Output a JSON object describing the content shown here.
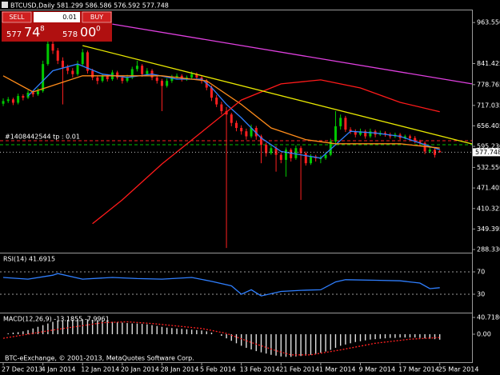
{
  "header": "BTCUSD,Daily  581.299 586.586 576.592 577.748",
  "trade_panel": {
    "sell": "SELL",
    "lot": "0.01",
    "buy": "BUY",
    "bid_main": "577",
    "bid_big": "74",
    "bid_small": "8",
    "ask_main": "578",
    "ask_big": "00",
    "ask_small": "0"
  },
  "footer": "BTC-eExchange, © 2001-2013, MetaQuotes Software Corp.",
  "chart_data": [
    {
      "type": "candlestick",
      "up_color": "#00c800",
      "down_color": "#ff2020",
      "xlim": [
        -0.65,
        94.5
      ],
      "ylim": [
        279,
        1002
      ],
      "xticks": [
        {
          "value": 0,
          "label": "27 Dec 2013"
        },
        {
          "value": 8,
          "label": "4 Jan 2014"
        },
        {
          "value": 16,
          "label": "12 Jan 2014"
        },
        {
          "value": 24,
          "label": "20 Jan 2014"
        },
        {
          "value": 32,
          "label": "28 Jan 2014"
        },
        {
          "value": 40,
          "label": "5 Feb 2014"
        },
        {
          "value": 48,
          "label": "13 Feb 2014"
        },
        {
          "value": 56,
          "label": "21 Feb 2014"
        },
        {
          "value": 64,
          "label": "1 Mar 2014"
        },
        {
          "value": 72,
          "label": "9 Mar 2014"
        },
        {
          "value": 80,
          "label": "17 Mar 2014"
        },
        {
          "value": 88,
          "label": "25 Mar 2014"
        }
      ],
      "yticks": [
        {
          "value": 963.55,
          "label": "963.550"
        },
        841.425,
        778.765,
        717.035,
        656.405,
        {
          "value": 595.23,
          "label": "595.230"
        },
        {
          "value": 532.55,
          "label": "532.550"
        },
        471.405,
        410.325,
        349.395,
        {
          "value": 288.33,
          "label": "288.330"
        }
      ],
      "current_price": 577.748,
      "order_label": "#1408442544 tp : 0.01",
      "hlines": [
        {
          "value": 612,
          "color": "#ff2020"
        },
        {
          "value": 600,
          "color": "#00c000"
        }
      ],
      "ohlc": [
        [
          722,
          738,
          715,
          730
        ],
        [
          730,
          742,
          724,
          735
        ],
        [
          735,
          740,
          718,
          725
        ],
        [
          725,
          752,
          720,
          745
        ],
        [
          745,
          750,
          732,
          740
        ],
        [
          740,
          762,
          736,
          755
        ],
        [
          755,
          760,
          742,
          750
        ],
        [
          750,
          768,
          745,
          760
        ],
        [
          760,
          850,
          755,
          840
        ],
        [
          840,
          930,
          835,
          900
        ],
        [
          900,
          940,
          870,
          880
        ],
        [
          880,
          888,
          840,
          850
        ],
        [
          850,
          860,
          720,
          830
        ],
        [
          830,
          838,
          810,
          820
        ],
        [
          820,
          828,
          800,
          810
        ],
        [
          810,
          850,
          805,
          840
        ],
        [
          840,
          885,
          835,
          875
        ],
        [
          875,
          880,
          812,
          820
        ],
        [
          820,
          826,
          792,
          800
        ],
        [
          800,
          806,
          780,
          790
        ],
        [
          790,
          812,
          785,
          805
        ],
        [
          805,
          810,
          788,
          795
        ],
        [
          795,
          822,
          790,
          815
        ],
        [
          815,
          820,
          794,
          800
        ],
        [
          800,
          806,
          782,
          790
        ],
        [
          790,
          808,
          785,
          800
        ],
        [
          800,
          832,
          795,
          825
        ],
        [
          825,
          850,
          818,
          835
        ],
        [
          835,
          840,
          802,
          810
        ],
        [
          810,
          828,
          805,
          820
        ],
        [
          820,
          825,
          792,
          800
        ],
        [
          800,
          806,
          782,
          790
        ],
        [
          790,
          796,
          700,
          775
        ],
        [
          775,
          798,
          770,
          790
        ],
        [
          790,
          808,
          784,
          800
        ],
        [
          800,
          812,
          795,
          805
        ],
        [
          805,
          810,
          788,
          795
        ],
        [
          795,
          806,
          790,
          800
        ],
        [
          800,
          818,
          795,
          810
        ],
        [
          810,
          815,
          793,
          800
        ],
        [
          800,
          806,
          782,
          790
        ],
        [
          790,
          795,
          762,
          770
        ],
        [
          770,
          776,
          730,
          740
        ],
        [
          740,
          748,
          712,
          720
        ],
        [
          720,
          728,
          690,
          700
        ],
        [
          700,
          712,
          293,
          690
        ],
        [
          690,
          695,
          655,
          665
        ],
        [
          665,
          672,
          640,
          650
        ],
        [
          650,
          658,
          630,
          640
        ],
        [
          640,
          648,
          615,
          625
        ],
        [
          625,
          660,
          620,
          650
        ],
        [
          650,
          656,
          615,
          625
        ],
        [
          625,
          630,
          545,
          600
        ],
        [
          600,
          606,
          565,
          575
        ],
        [
          575,
          598,
          570,
          590
        ],
        [
          590,
          596,
          520,
          570
        ],
        [
          570,
          576,
          545,
          555
        ],
        [
          555,
          592,
          505,
          585
        ],
        [
          585,
          590,
          550,
          560
        ],
        [
          560,
          598,
          555,
          590
        ],
        [
          590,
          596,
          436,
          575
        ],
        [
          575,
          580,
          538,
          545
        ],
        [
          545,
          572,
          540,
          565
        ],
        [
          565,
          570,
          550,
          560
        ],
        [
          560,
          568,
          545,
          560
        ],
        [
          560,
          578,
          555,
          570
        ],
        [
          570,
          618,
          566,
          610
        ],
        [
          610,
          700,
          605,
          655
        ],
        [
          655,
          690,
          645,
          680
        ],
        [
          680,
          686,
          638,
          645
        ],
        [
          645,
          652,
          632,
          640
        ],
        [
          640,
          646,
          622,
          630
        ],
        [
          630,
          648,
          626,
          640
        ],
        [
          640,
          645,
          618,
          625
        ],
        [
          625,
          648,
          620,
          640
        ],
        [
          640,
          645,
          622,
          630
        ],
        [
          630,
          642,
          626,
          635
        ],
        [
          635,
          640,
          624,
          630
        ],
        [
          630,
          636,
          618,
          625
        ],
        [
          625,
          636,
          620,
          630
        ],
        [
          630,
          635,
          614,
          620
        ],
        [
          620,
          630,
          616,
          625
        ],
        [
          625,
          630,
          614,
          620
        ],
        [
          620,
          626,
          604,
          610
        ],
        [
          610,
          615,
          598,
          605
        ],
        [
          605,
          610,
          572,
          580
        ],
        [
          580,
          592,
          575,
          585
        ],
        [
          585,
          590,
          562,
          570
        ],
        [
          581.299,
          586.586,
          576.592,
          577.748
        ]
      ],
      "lines": [
        {
          "color": "#2f7fff",
          "x": [
            5,
            10,
            15,
            20,
            25,
            30,
            35,
            40,
            42,
            45,
            48,
            52,
            56,
            60,
            64,
            67,
            70,
            75,
            80,
            85,
            88
          ],
          "values": [
            745,
            820,
            840,
            810,
            800,
            810,
            795,
            795,
            770,
            720,
            680,
            620,
            580,
            570,
            560,
            600,
            640,
            635,
            625,
            600,
            585
          ]
        },
        {
          "color": "#ff8c1a",
          "x": [
            0,
            6,
            16,
            32,
            41,
            48,
            54,
            61,
            67,
            80,
            88
          ],
          "values": [
            805,
            757,
            805,
            805,
            790,
            720,
            650,
            615,
            603,
            603,
            590
          ]
        },
        {
          "color": "#ff1a1a",
          "x": [
            18,
            24,
            32,
            40,
            48,
            56,
            64,
            72,
            80,
            88
          ],
          "values": [
            365,
            436,
            543,
            638,
            733,
            781,
            793,
            769,
            726,
            698
          ]
        },
        {
          "color": "#e8e800",
          "x": [
            16,
            94.5
          ],
          "values": [
            895,
            602.5
          ]
        },
        {
          "color": "#e040e0",
          "x": [
            22,
            94.5
          ],
          "values": [
            959,
            781
          ]
        }
      ]
    },
    {
      "type": "line",
      "title": "RSI(14) 41.6915",
      "ylim": [
        0,
        100
      ],
      "yticks": [
        70,
        30
      ],
      "levels": true,
      "series": [
        {
          "color": "#2f7fff",
          "x": [
            0,
            5,
            10,
            11,
            16,
            22,
            27,
            32,
            38,
            42,
            46,
            48,
            50,
            52,
            56,
            60,
            64,
            67,
            69,
            75,
            80,
            84,
            86,
            88
          ],
          "values": [
            60,
            57,
            64,
            67,
            57,
            60,
            58,
            57,
            60,
            53,
            45,
            30,
            38,
            27,
            35,
            37,
            38,
            52,
            56,
            55,
            54,
            50,
            40,
            41.6915
          ]
        }
      ]
    },
    {
      "type": "macd",
      "title": "MACD(12,26,9) -13.1855 -7.9961",
      "ylim": [
        -66,
        44.6
      ],
      "yticks": [
        40.7186,
        {
          "value": 0,
          "label": "0.00"
        }
      ],
      "histogram": {
        "color": "#e0e0e0",
        "values": [
          0,
          2,
          4,
          5,
          7,
          10,
          14,
          18,
          22,
          26,
          30,
          32,
          34,
          35,
          35,
          36,
          36,
          36,
          35,
          34,
          33,
          32,
          30,
          29,
          28,
          27,
          26,
          26,
          25,
          24,
          22,
          20,
          18,
          16,
          15,
          14,
          13,
          12,
          11,
          10,
          9,
          7,
          4,
          0,
          -4,
          -10,
          -16,
          -22,
          -28,
          -33,
          -37,
          -41,
          -44,
          -47,
          -50,
          -52,
          -54,
          -55,
          -55,
          -54,
          -53,
          -52,
          -50,
          -48,
          -45,
          -42,
          -38,
          -33,
          -28,
          -25,
          -22,
          -19,
          -17,
          -15,
          -13,
          -12,
          -11,
          -10,
          -9,
          -9,
          -8,
          -8,
          -8,
          -8,
          -9,
          -10,
          -11,
          -12,
          -13.1855
        ]
      },
      "signal": {
        "color": "#ff2020",
        "x": [
          0,
          10,
          20,
          25,
          30,
          40,
          45,
          50,
          55,
          58,
          62,
          68,
          75,
          82,
          88
        ],
        "values": [
          -10,
          10,
          28,
          30,
          26,
          14,
          2,
          -20,
          -40,
          -50,
          -50,
          -38,
          -22,
          -12,
          -7.9961
        ]
      }
    }
  ]
}
